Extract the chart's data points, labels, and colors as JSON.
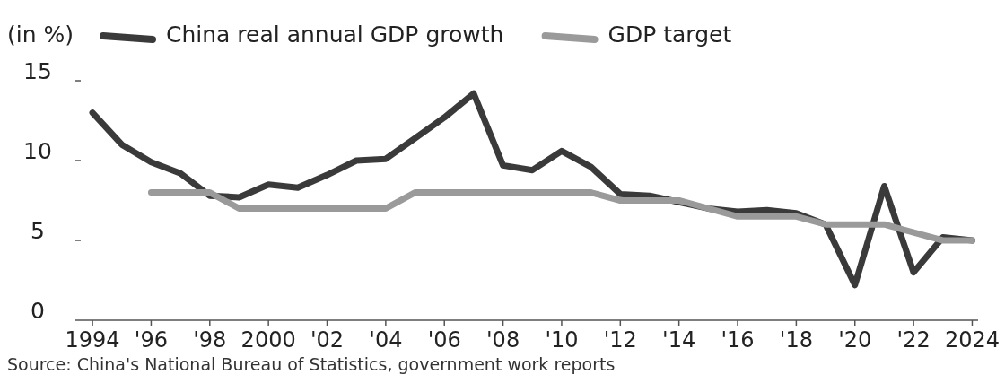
{
  "chart_data": {
    "type": "line",
    "ylabel": "(in %)",
    "x": [
      1994,
      1995,
      1996,
      1997,
      1998,
      1999,
      2000,
      2001,
      2002,
      2003,
      2004,
      2005,
      2006,
      2007,
      2008,
      2009,
      2010,
      2011,
      2012,
      2013,
      2014,
      2015,
      2016,
      2017,
      2018,
      2019,
      2020,
      2021,
      2022,
      2023,
      2024
    ],
    "series": [
      {
        "name": "China real annual GDP growth",
        "color": "#3a3a3a",
        "values": [
          13.0,
          11.0,
          9.9,
          9.2,
          7.8,
          7.7,
          8.5,
          8.3,
          9.1,
          10.0,
          10.1,
          11.4,
          12.7,
          14.2,
          9.7,
          9.4,
          10.6,
          9.6,
          7.9,
          7.8,
          7.4,
          7.0,
          6.8,
          6.9,
          6.7,
          6.0,
          2.2,
          8.4,
          3.0,
          5.2,
          5.0
        ]
      },
      {
        "name": "GDP target",
        "color": "#9a9a9a",
        "values": [
          null,
          null,
          8,
          8,
          8,
          7,
          7,
          7,
          7,
          7,
          7,
          8,
          8,
          8,
          8,
          8,
          8,
          8,
          7.5,
          7.5,
          7.5,
          7.0,
          6.5,
          6.5,
          6.5,
          6.0,
          6.0,
          6.0,
          5.5,
          5.0,
          5.0
        ]
      }
    ],
    "xlim": [
      1993.6,
      2024.2
    ],
    "xticks": [
      {
        "value": 1994,
        "label": "1994"
      },
      {
        "value": 1996,
        "label": "'96"
      },
      {
        "value": 1998,
        "label": "'98"
      },
      {
        "value": 2000,
        "label": "2000"
      },
      {
        "value": 2002,
        "label": "'02"
      },
      {
        "value": 2004,
        "label": "'04"
      },
      {
        "value": 2006,
        "label": "'06"
      },
      {
        "value": 2008,
        "label": "'08"
      },
      {
        "value": 2010,
        "label": "'10"
      },
      {
        "value": 2012,
        "label": "'12"
      },
      {
        "value": 2014,
        "label": "'14"
      },
      {
        "value": 2016,
        "label": "'16"
      },
      {
        "value": 2018,
        "label": "'18"
      },
      {
        "value": 2020,
        "label": "'20"
      },
      {
        "value": 2022,
        "label": "'22"
      },
      {
        "value": 2024,
        "label": "2024"
      }
    ],
    "ylim": [
      0,
      15
    ],
    "yticks": [
      0,
      5,
      10,
      15
    ],
    "grid": false,
    "legend": "top left",
    "line_style": "solid",
    "marker": "none",
    "annotations": [
      "Source: China's National Bureau of Statistics, government work reports"
    ]
  }
}
